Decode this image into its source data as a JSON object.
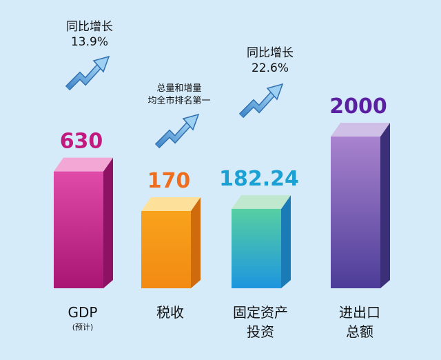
{
  "chart_data": {
    "type": "bar",
    "style": "3d-columns",
    "categories": [
      {
        "line1": "GDP",
        "line2": "(预计)"
      },
      {
        "line1": "税收",
        "line2": ""
      },
      {
        "line1": "固定资产",
        "line2": "投资"
      },
      {
        "line1": "进出口",
        "line2": "总额"
      }
    ],
    "values": [
      630,
      170,
      182.24,
      2000
    ],
    "value_labels": [
      "630",
      "170",
      "182.24",
      "2000"
    ],
    "value_label_colors": [
      "#c2197f",
      "#ee6d1f",
      "#1aa0d2",
      "#5b1fa2"
    ],
    "bar_colors": [
      {
        "front_top": "#e04aa8",
        "front_bottom": "#a81573",
        "side": "#8e1263",
        "top": "#f2a7d4"
      },
      {
        "front_top": "#f8a21c",
        "front_bottom": "#f28a12",
        "side": "#cf6a0d",
        "top": "#fde09a"
      },
      {
        "front_top": "#56cfa2",
        "front_bottom": "#1d95df",
        "side": "#1a7bb7",
        "top": "#bfe8cf"
      },
      {
        "front_top": "#a983ce",
        "front_bottom": "#4c3d98",
        "side": "#3b2f7a",
        "top": "#cfbfe6"
      }
    ],
    "annotations": [
      {
        "bar": 0,
        "lines": [
          "同比增长",
          "13.9%"
        ]
      },
      {
        "bar": 1,
        "lines": [
          "总量和增量",
          "均全市排名第一"
        ]
      },
      {
        "bar": 2,
        "lines": [
          "同比增长",
          "22.6%"
        ]
      }
    ],
    "title": "",
    "xlabel": "",
    "ylabel": ""
  }
}
